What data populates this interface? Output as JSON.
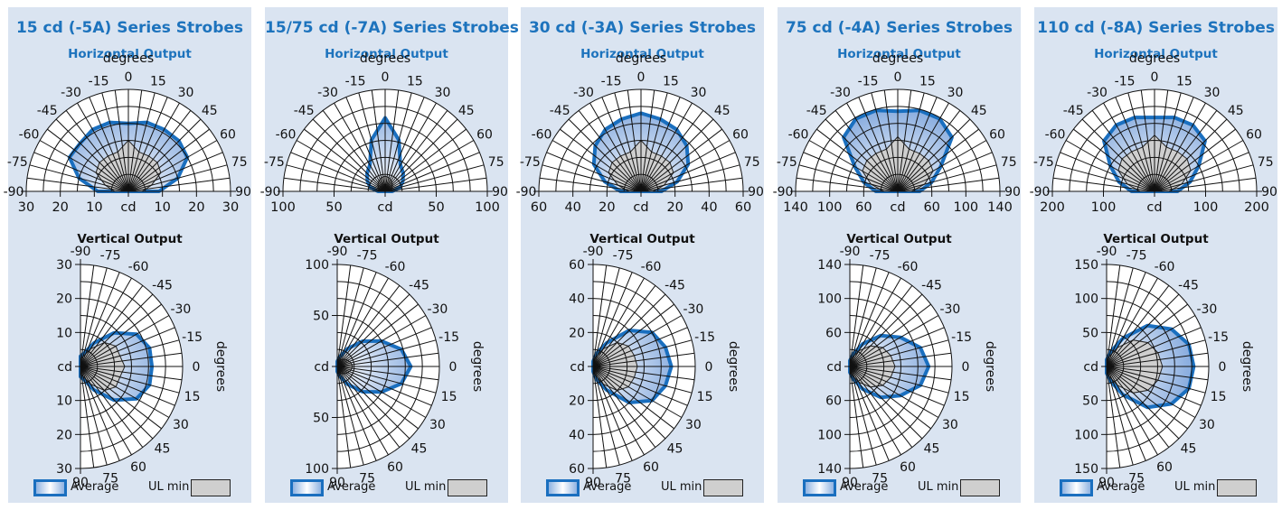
{
  "chart_data": [
    {
      "type": "polar",
      "title": "15 cd (-5A) Series Strobes",
      "horizontal": {
        "title": "Horizontal Output",
        "angle_label": "degrees",
        "angle_ticks": [
          "-90",
          "-75",
          "-60",
          "-45",
          "-30",
          "-15",
          "0",
          "15",
          "30",
          "45",
          "60",
          "75",
          "90"
        ],
        "radial_ticks": [
          "30",
          "20",
          "10",
          "cd",
          "10",
          "20",
          "30"
        ],
        "rmax": 30,
        "angles": [
          -90,
          -75,
          -60,
          -45,
          -30,
          -15,
          0,
          15,
          30,
          45,
          60,
          75,
          90
        ],
        "average": [
          9,
          15,
          20,
          20,
          21,
          21,
          20,
          21,
          21,
          21,
          20,
          15,
          9
        ],
        "ul_min": [
          4,
          7,
          11,
          12,
          12,
          12,
          15,
          12,
          12,
          12,
          11,
          7,
          4
        ]
      },
      "vertical": {
        "title": "Vertical Output",
        "angle_label": "degrees",
        "angle_ticks": [
          "-90",
          "-75",
          "-60",
          "-45",
          "-30",
          "-15",
          "0",
          "15",
          "30",
          "45",
          "60",
          "75",
          "90"
        ],
        "radial_ticks": [
          "30",
          "20",
          "10",
          "cd",
          "10",
          "20",
          "30"
        ],
        "rmax": 30,
        "angles": [
          -90,
          -75,
          -60,
          -45,
          -30,
          -15,
          0,
          15,
          30,
          45,
          60,
          75,
          90
        ],
        "average": [
          3,
          4,
          8,
          14,
          19,
          21,
          21,
          21,
          19,
          14,
          8,
          4,
          3
        ],
        "ul_min": [
          2,
          3,
          6,
          10,
          12,
          12,
          13,
          12,
          12,
          10,
          6,
          3,
          2
        ]
      },
      "legend": [
        "Average",
        "UL min"
      ]
    },
    {
      "type": "polar",
      "title": "15/75 cd (-7A) Series Strobes",
      "horizontal": {
        "title": "Horizontal Output",
        "angle_label": "degrees",
        "angle_ticks": [
          "-90",
          "-75",
          "-60",
          "-45",
          "-30",
          "-15",
          "0",
          "15",
          "30",
          "45",
          "60",
          "75",
          "90"
        ],
        "radial_ticks": [
          "100",
          "50",
          "cd",
          "50",
          "100"
        ],
        "rmax": 100,
        "angles": [
          -90,
          -75,
          -60,
          -45,
          -30,
          -15,
          0,
          15,
          30,
          45,
          60,
          75,
          90
        ],
        "average": [
          7,
          15,
          20,
          25,
          30,
          52,
          72,
          52,
          30,
          25,
          20,
          15,
          7
        ],
        "ul_min": [
          3,
          5,
          8,
          10,
          12,
          14,
          15,
          14,
          12,
          10,
          8,
          5,
          3
        ]
      },
      "vertical": {
        "title": "Vertical Output",
        "angle_label": "degrees",
        "angle_ticks": [
          "-90",
          "-75",
          "-60",
          "-45",
          "-30",
          "-15",
          "0",
          "15",
          "30",
          "45",
          "60",
          "75",
          "90"
        ],
        "radial_ticks": [
          "100",
          "50",
          "cd",
          "50",
          "100"
        ],
        "rmax": 100,
        "angles": [
          -90,
          -75,
          -60,
          -45,
          -30,
          -15,
          0,
          15,
          30,
          45,
          60,
          75,
          90
        ],
        "average": [
          5,
          10,
          20,
          35,
          50,
          65,
          72,
          65,
          50,
          35,
          20,
          10,
          5
        ],
        "ul_min": [
          3,
          5,
          8,
          10,
          12,
          14,
          15,
          14,
          12,
          10,
          8,
          5,
          3
        ]
      },
      "legend": [
        "Average",
        "UL min"
      ]
    },
    {
      "type": "polar",
      "title": "30 cd (-3A) Series Strobes",
      "horizontal": {
        "title": "Horizontal Output",
        "angle_label": "degrees",
        "angle_ticks": [
          "-90",
          "-75",
          "-60",
          "-45",
          "-30",
          "-15",
          "0",
          "15",
          "30",
          "45",
          "60",
          "75",
          "90"
        ],
        "radial_ticks": [
          "60",
          "40",
          "20",
          "cd",
          "20",
          "40",
          "60"
        ],
        "rmax": 60,
        "angles": [
          -90,
          -75,
          -60,
          -45,
          -30,
          -15,
          0,
          15,
          30,
          45,
          60,
          75,
          90
        ],
        "average": [
          12,
          22,
          32,
          38,
          42,
          44,
          46,
          44,
          42,
          38,
          32,
          22,
          12
        ],
        "ul_min": [
          7,
          14,
          22,
          24,
          24,
          24,
          30,
          24,
          24,
          24,
          22,
          14,
          7
        ]
      },
      "vertical": {
        "title": "Vertical Output",
        "angle_label": "degrees",
        "angle_ticks": [
          "-90",
          "-75",
          "-60",
          "-45",
          "-30",
          "-15",
          "0",
          "15",
          "30",
          "45",
          "60",
          "75",
          "90"
        ],
        "radial_ticks": [
          "60",
          "40",
          "20",
          "cd",
          "20",
          "40",
          "60"
        ],
        "rmax": 60,
        "angles": [
          -90,
          -75,
          -60,
          -45,
          -30,
          -15,
          0,
          15,
          30,
          45,
          60,
          75,
          90
        ],
        "average": [
          3,
          8,
          16,
          30,
          40,
          44,
          46,
          44,
          40,
          30,
          16,
          8,
          3
        ],
        "ul_min": [
          2,
          5,
          12,
          20,
          24,
          25,
          26,
          25,
          24,
          20,
          12,
          5,
          2
        ]
      },
      "legend": [
        "Average",
        "UL min"
      ]
    },
    {
      "type": "polar",
      "title": "75 cd (-4A) Series Strobes",
      "horizontal": {
        "title": "Horizontal Output",
        "angle_label": "degrees",
        "angle_ticks": [
          "-90",
          "-75",
          "-60",
          "-45",
          "-30",
          "-15",
          "0",
          "15",
          "30",
          "45",
          "60",
          "75",
          "90"
        ],
        "radial_ticks": [
          "140",
          "100",
          "60",
          "cd",
          "60",
          "100",
          "140"
        ],
        "rmax": 140,
        "angles": [
          -90,
          -75,
          -60,
          -45,
          -30,
          -15,
          0,
          15,
          30,
          45,
          60,
          75,
          90
        ],
        "average": [
          30,
          48,
          68,
          105,
          115,
          115,
          110,
          115,
          115,
          105,
          68,
          48,
          30
        ],
        "ul_min": [
          19,
          38,
          56,
          60,
          60,
          60,
          75,
          60,
          60,
          60,
          56,
          38,
          19
        ]
      },
      "vertical": {
        "title": "Vertical Output",
        "angle_label": "degrees",
        "angle_ticks": [
          "-90",
          "-75",
          "-60",
          "-45",
          "-30",
          "-15",
          "0",
          "15",
          "30",
          "45",
          "60",
          "75",
          "90"
        ],
        "radial_ticks": [
          "140",
          "100",
          "60",
          "cd",
          "60",
          "100",
          "140"
        ],
        "rmax": 140,
        "angles": [
          -90,
          -75,
          -60,
          -45,
          -30,
          -15,
          0,
          15,
          30,
          45,
          60,
          75,
          90
        ],
        "average": [
          8,
          18,
          36,
          60,
          80,
          100,
          108,
          100,
          80,
          60,
          36,
          18,
          8
        ],
        "ul_min": [
          5,
          12,
          25,
          40,
          52,
          58,
          62,
          58,
          52,
          40,
          25,
          12,
          5
        ]
      },
      "legend": [
        "Average",
        "UL min"
      ]
    },
    {
      "type": "polar",
      "title": "110 cd (-8A) Series Strobes",
      "horizontal": {
        "title": "Horizontal Output",
        "angle_label": "degrees",
        "angle_ticks": [
          "-90",
          "-75",
          "-60",
          "-45",
          "-30",
          "-15",
          "0",
          "15",
          "30",
          "45",
          "60",
          "75",
          "90"
        ],
        "radial_ticks": [
          "200",
          "100",
          "cd",
          "100",
          "200"
        ],
        "rmax": 200,
        "angles": [
          -90,
          -75,
          -60,
          -45,
          -30,
          -15,
          0,
          15,
          30,
          45,
          60,
          75,
          90
        ],
        "average": [
          45,
          72,
          100,
          140,
          150,
          150,
          145,
          150,
          150,
          140,
          100,
          72,
          45
        ],
        "ul_min": [
          28,
          55,
          82,
          90,
          90,
          90,
          110,
          90,
          90,
          90,
          82,
          55,
          28
        ]
      },
      "vertical": {
        "title": "Vertical Output",
        "angle_label": "degrees",
        "angle_ticks": [
          "-90",
          "-75",
          "-60",
          "-45",
          "-30",
          "-15",
          "0",
          "15",
          "30",
          "45",
          "60",
          "75",
          "90"
        ],
        "radial_ticks": [
          "150",
          "100",
          "50",
          "cd",
          "50",
          "100",
          "150"
        ],
        "rmax": 150,
        "angles": [
          -90,
          -75,
          -60,
          -45,
          -30,
          -15,
          0,
          15,
          30,
          45,
          60,
          75,
          90
        ],
        "average": [
          10,
          22,
          48,
          85,
          110,
          125,
          128,
          125,
          110,
          85,
          48,
          22,
          10
        ],
        "ul_min": [
          6,
          15,
          32,
          55,
          70,
          78,
          82,
          78,
          70,
          55,
          32,
          15,
          6
        ]
      },
      "legend": [
        "Average",
        "UL min"
      ]
    }
  ]
}
